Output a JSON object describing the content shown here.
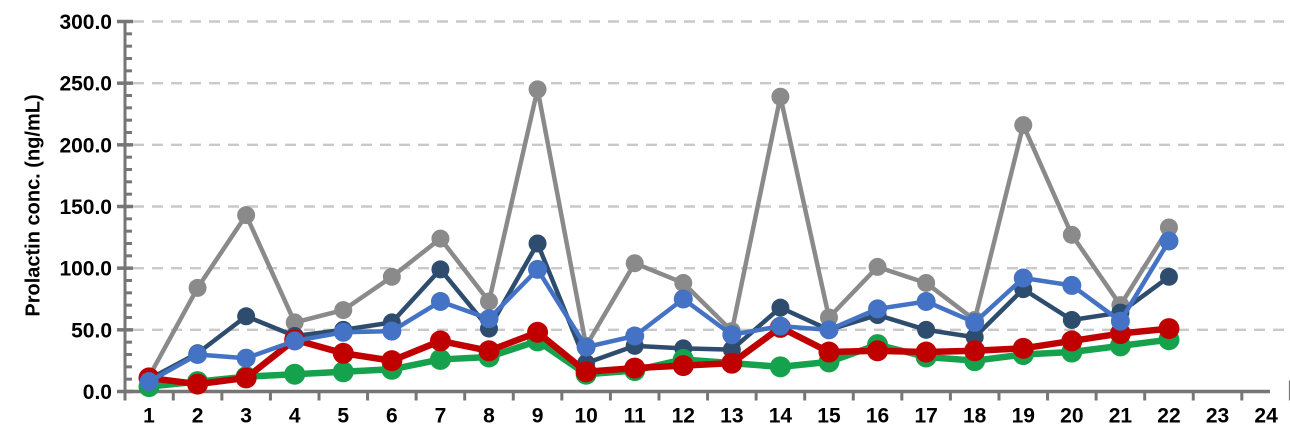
{
  "chart_data": {
    "type": "line",
    "title": "",
    "xlabel": "",
    "ylabel": "Prolactin conc. (ng/mL)",
    "x_tick_labels": [
      "1",
      "2",
      "3",
      "4",
      "5",
      "6",
      "7",
      "8",
      "9",
      "10",
      "11",
      "12",
      "13",
      "14",
      "15",
      "16",
      "17",
      "18",
      "19",
      "20",
      "21",
      "22",
      "23",
      "24"
    ],
    "y_tick_labels": [
      "0.0",
      "50.0",
      "100.0",
      "150.0",
      "200.0",
      "250.0",
      "300.0"
    ],
    "ylim": [
      0,
      300
    ],
    "y_major_step": 50,
    "y_minor_step": 10,
    "grid": "dashed-horizontal",
    "legend": "none",
    "x": [
      1,
      2,
      3,
      4,
      5,
      6,
      7,
      8,
      9,
      10,
      11,
      12,
      13,
      14,
      15,
      16,
      17,
      18,
      19,
      20,
      21,
      22
    ],
    "series": [
      {
        "name": "gray",
        "color": "#8A8A8A",
        "values": [
          12,
          84,
          143,
          56,
          66,
          93,
          124,
          73,
          245,
          37,
          104,
          88,
          49,
          239,
          60,
          101,
          88,
          58,
          216,
          127,
          70,
          133
        ]
      },
      {
        "name": "dark-slate-blue",
        "color": "#2E4D6E",
        "values": [
          10,
          31,
          61,
          45,
          50,
          56,
          99,
          51,
          120,
          23,
          37,
          35,
          34,
          68,
          50,
          62,
          50,
          44,
          83,
          58,
          64,
          93
        ]
      },
      {
        "name": "green",
        "color": "#16A24D",
        "values": [
          4,
          8,
          12,
          14,
          16,
          18,
          26,
          28,
          41,
          14,
          17,
          26,
          23,
          20,
          24,
          38,
          28,
          25,
          30,
          32,
          37,
          42
        ]
      },
      {
        "name": "red",
        "color": "#C00000",
        "values": [
          11,
          6,
          11,
          42,
          31,
          25,
          41,
          33,
          48,
          16,
          19,
          21,
          23,
          52,
          32,
          33,
          32,
          33,
          35,
          41,
          47,
          51
        ]
      },
      {
        "name": "blue",
        "color": "#4472C4",
        "values": [
          8,
          30,
          27,
          41,
          48,
          49,
          73,
          59,
          99,
          36,
          45,
          75,
          46,
          53,
          50,
          67,
          73,
          56,
          92,
          86,
          57,
          122
        ]
      }
    ],
    "axis_color": "#767676",
    "gridline_color": "#C9C9C9"
  }
}
